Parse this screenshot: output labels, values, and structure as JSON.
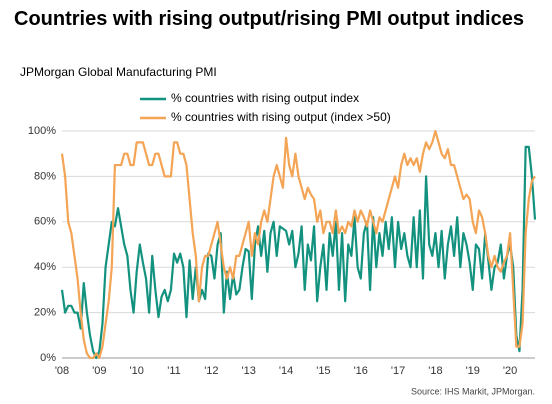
{
  "chart_data": {
    "type": "line",
    "title": "Countries with rising output/rising PMI output indices",
    "subtitle": "JPMorgan Global Manufacturing PMI",
    "source": "Source: IHS Markit, JPMorgan.",
    "categories": [
      "'08",
      null,
      null,
      null,
      null,
      null,
      null,
      null,
      null,
      null,
      null,
      null,
      "'09",
      null,
      null,
      null,
      null,
      null,
      null,
      null,
      null,
      null,
      null,
      null,
      "'10",
      null,
      null,
      null,
      null,
      null,
      null,
      null,
      null,
      null,
      null,
      null,
      "'11",
      null,
      null,
      null,
      null,
      null,
      null,
      null,
      null,
      null,
      null,
      null,
      "'12",
      null,
      null,
      null,
      null,
      null,
      null,
      null,
      null,
      null,
      null,
      null,
      "'13",
      null,
      null,
      null,
      null,
      null,
      null,
      null,
      null,
      null,
      null,
      null,
      "'14",
      null,
      null,
      null,
      null,
      null,
      null,
      null,
      null,
      null,
      null,
      null,
      "'15",
      null,
      null,
      null,
      null,
      null,
      null,
      null,
      null,
      null,
      null,
      null,
      "'16",
      null,
      null,
      null,
      null,
      null,
      null,
      null,
      null,
      null,
      null,
      null,
      "'17",
      null,
      null,
      null,
      null,
      null,
      null,
      null,
      null,
      null,
      null,
      null,
      "'18",
      null,
      null,
      null,
      null,
      null,
      null,
      null,
      null,
      null,
      null,
      null,
      "'19",
      null,
      null,
      null,
      null,
      null,
      null,
      null,
      null,
      null,
      null,
      null,
      "'20",
      null,
      null,
      null,
      null,
      null,
      null,
      null,
      null
    ],
    "series": [
      {
        "name": "% countries with rising output index",
        "color": "#13927f",
        "values": [
          30,
          20,
          23,
          23,
          20,
          20,
          13,
          33,
          20,
          10,
          3,
          0,
          3,
          15,
          40,
          50,
          60,
          58,
          66,
          58,
          50,
          45,
          30,
          20,
          38,
          50,
          42,
          35,
          20,
          45,
          30,
          18,
          27,
          30,
          25,
          30,
          46,
          42,
          46,
          40,
          18,
          43,
          26,
          40,
          25,
          30,
          26,
          46,
          45,
          35,
          50,
          55,
          20,
          38,
          26,
          37,
          28,
          30,
          40,
          48,
          47,
          26,
          50,
          58,
          45,
          56,
          38,
          55,
          60,
          45,
          58,
          57,
          56,
          50,
          56,
          40,
          46,
          58,
          30,
          50,
          43,
          58,
          25,
          40,
          50,
          30,
          55,
          45,
          60,
          30,
          55,
          25,
          50,
          45,
          62,
          40,
          35,
          55,
          60,
          30,
          62,
          40,
          55,
          45,
          60,
          48,
          62,
          40,
          60,
          48,
          55,
          45,
          40,
          62,
          40,
          65,
          35,
          80,
          50,
          45,
          55,
          40,
          56,
          35,
          50,
          58,
          45,
          62,
          40,
          55,
          50,
          42,
          30,
          50,
          48,
          35,
          55,
          43,
          30,
          40,
          42,
          50,
          35,
          45,
          50,
          40,
          10,
          3,
          30,
          93,
          93,
          80,
          61
        ]
      },
      {
        "name": "% countries with rising output (index >50)",
        "color": "#f4a455",
        "values": [
          90,
          80,
          60,
          55,
          45,
          35,
          20,
          8,
          2,
          0,
          0,
          2,
          0,
          5,
          15,
          25,
          40,
          85,
          85,
          85,
          90,
          90,
          85,
          85,
          95,
          95,
          95,
          90,
          85,
          85,
          90,
          90,
          85,
          80,
          80,
          80,
          95,
          95,
          90,
          90,
          85,
          70,
          55,
          45,
          25,
          40,
          45,
          45,
          50,
          55,
          60,
          50,
          40,
          35,
          40,
          35,
          45,
          45,
          50,
          55,
          60,
          45,
          55,
          50,
          60,
          65,
          60,
          70,
          80,
          85,
          80,
          75,
          97,
          85,
          80,
          90,
          80,
          75,
          70,
          75,
          72,
          70,
          60,
          65,
          55,
          60,
          60,
          55,
          65,
          55,
          58,
          55,
          60,
          58,
          65,
          60,
          65,
          62,
          58,
          65,
          60,
          55,
          62,
          60,
          65,
          70,
          75,
          80,
          75,
          85,
          90,
          85,
          88,
          85,
          88,
          82,
          90,
          95,
          92,
          95,
          100,
          95,
          90,
          88,
          92,
          85,
          85,
          80,
          75,
          70,
          72,
          70,
          60,
          55,
          65,
          62,
          55,
          45,
          40,
          45,
          40,
          38,
          42,
          45,
          55,
          30,
          5,
          5,
          15,
          55,
          70,
          78,
          80
        ]
      }
    ],
    "ylim": [
      0,
      100
    ],
    "yticks": [
      {
        "value": 0,
        "label": "0%"
      },
      {
        "value": 20,
        "label": "20%"
      },
      {
        "value": 40,
        "label": "40%"
      },
      {
        "value": 60,
        "label": "60%"
      },
      {
        "value": 80,
        "label": "80%"
      },
      {
        "value": 100,
        "label": "100%"
      }
    ],
    "grid": true
  }
}
